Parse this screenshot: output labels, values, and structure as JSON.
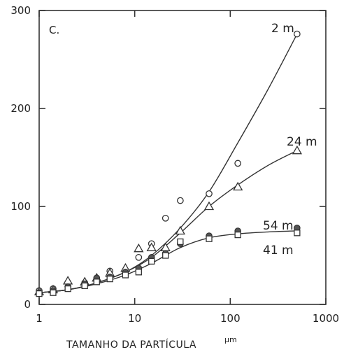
{
  "chart_data": {
    "type": "scatter",
    "panel_label": "C.",
    "xlabel": "TAMANHO DA PARTÍCULA",
    "xlabel_unit": "µm",
    "ylabel": "",
    "x_scale": "log",
    "xlim": [
      1,
      1000
    ],
    "ylim": [
      0,
      300
    ],
    "x_ticks": [
      1,
      10,
      100,
      1000
    ],
    "x_tick_labels": [
      "1",
      "10",
      "100",
      "1000"
    ],
    "y_ticks": [
      0,
      100,
      200,
      300
    ],
    "y_tick_labels": [
      "0",
      "100",
      "200",
      "300"
    ],
    "series": [
      {
        "name": "2 m",
        "marker": "circle",
        "x": [
          1,
          1.4,
          2,
          3,
          4,
          5.5,
          8,
          11,
          15,
          21,
          30,
          60,
          120,
          500
        ],
        "y": [
          14,
          16,
          18,
          22,
          26,
          34,
          32,
          48,
          62,
          88,
          106,
          113,
          144,
          276
        ],
        "fit_x": [
          1,
          2,
          4,
          8,
          15,
          30,
          60,
          120,
          250,
          500
        ],
        "fit_y": [
          12,
          15,
          22,
          33,
          50,
          78,
          115,
          165,
          220,
          276
        ]
      },
      {
        "name": "24 m",
        "marker": "triangle",
        "x": [
          1,
          1.4,
          2,
          3,
          4,
          5.5,
          8,
          11,
          15,
          21,
          30,
          60,
          120,
          500
        ],
        "y": [
          13,
          15,
          24,
          23,
          27,
          32,
          37,
          57,
          58,
          58,
          75,
          100,
          120,
          157
        ],
        "fit_x": [
          1,
          2,
          4,
          8,
          15,
          30,
          60,
          120,
          250,
          500
        ],
        "fit_y": [
          12,
          15,
          22,
          33,
          48,
          73,
          100,
          122,
          142,
          157
        ]
      },
      {
        "name": "54 m",
        "marker": "circle-filled",
        "x": [
          1,
          1.4,
          2,
          3,
          4,
          5.5,
          8,
          11,
          15,
          21,
          30,
          60,
          120,
          500
        ],
        "y": [
          12,
          14,
          18,
          21,
          27,
          28,
          33,
          37,
          48,
          52,
          62,
          70,
          75,
          78
        ],
        "fit_x": [
          1,
          2,
          4,
          8,
          15,
          30,
          60,
          120,
          250,
          500
        ],
        "fit_y": [
          12,
          15,
          21,
          30,
          42,
          58,
          68,
          72,
          74,
          75
        ]
      },
      {
        "name": "41 m",
        "marker": "square",
        "x": [
          1,
          1.4,
          2,
          3,
          4,
          5.5,
          8,
          11,
          15,
          21,
          30,
          60,
          120,
          500
        ],
        "y": [
          11,
          12,
          16,
          19,
          23,
          26,
          30,
          33,
          44,
          50,
          64,
          67,
          71,
          73
        ],
        "fit_x": [],
        "fit_y": []
      }
    ]
  }
}
